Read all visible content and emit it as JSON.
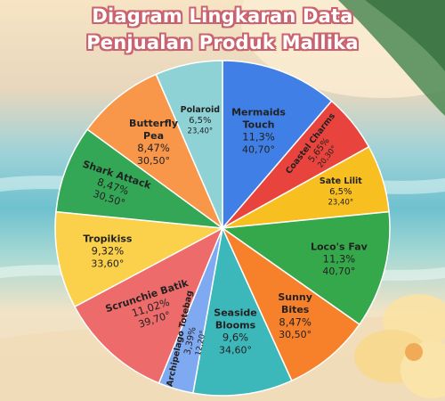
{
  "title_line1": "Diagram Lingkaran Data",
  "title_line2": "Penjualan Produk Mallika",
  "chart_data": {
    "type": "pie",
    "title": "Diagram Lingkaran Data Penjualan Produk Mallika",
    "start_angle_deg": 0,
    "slices": [
      {
        "label": "Mermaids Touch",
        "lines": [
          "Mermaids",
          "Touch"
        ],
        "percent": "11,3%",
        "degrees": "40,70°",
        "value": 40.7,
        "color": "#3f7fe6"
      },
      {
        "label": "Coastel Charms",
        "lines": [
          "Coastel Charms"
        ],
        "percent": "5,65%",
        "degrees": "20,30°",
        "value": 20.3,
        "color": "#e8433d"
      },
      {
        "label": "Sate Lilit",
        "lines": [
          "Sate Lilit"
        ],
        "percent": "6,5%",
        "degrees": "23,40°",
        "value": 23.4,
        "color": "#f8bf21"
      },
      {
        "label": "Loco's Fav",
        "lines": [
          "Loco's Fav"
        ],
        "percent": "11,3%",
        "degrees": "40,70°",
        "value": 40.7,
        "color": "#34a84b"
      },
      {
        "label": "Sunny Bites",
        "lines": [
          "Sunny",
          "Bites"
        ],
        "percent": "8,47%",
        "degrees": "30,50°",
        "value": 30.5,
        "color": "#f7812a"
      },
      {
        "label": "Seaside Blooms",
        "lines": [
          "Seaside",
          "Blooms"
        ],
        "percent": "9,6%",
        "degrees": "34,60°",
        "value": 34.6,
        "color": "#3cb8ba"
      },
      {
        "label": "Archipelago Totebag",
        "lines": [
          "Archipelago Totebag"
        ],
        "percent": "3,39%",
        "degrees": "12,20°",
        "value": 12.2,
        "color": "#7fa9f0"
      },
      {
        "label": "Scrunchie Batik",
        "lines": [
          "Scrunchie Batik"
        ],
        "percent": "11,02%",
        "degrees": "39,70°",
        "value": 39.7,
        "color": "#ee6b6b"
      },
      {
        "label": "Tropikiss",
        "lines": [
          "Tropikiss"
        ],
        "percent": "9,32%",
        "degrees": "33,60°",
        "value": 33.6,
        "color": "#fbd04a"
      },
      {
        "label": "Shark Attack",
        "lines": [
          "Shark Attack"
        ],
        "percent": "8,47%",
        "degrees": "30,50°",
        "value": 30.5,
        "color": "#33a756"
      },
      {
        "label": "Butterfly Pea",
        "lines": [
          "Butterfly",
          "Pea"
        ],
        "percent": "8,47%",
        "degrees": "30,50°",
        "value": 30.5,
        "color": "#f8964a"
      },
      {
        "label": "Polaroid",
        "lines": [
          "Polaroid"
        ],
        "percent": "6,5%",
        "degrees": "23,40°",
        "value": 23.4,
        "color": "#8fd2d6"
      }
    ]
  }
}
